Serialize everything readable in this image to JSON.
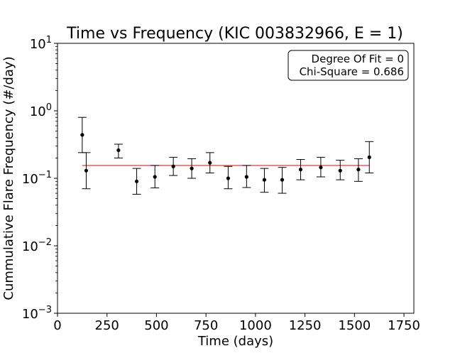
{
  "chart_data": {
    "type": "scatter",
    "title": "Time vs Frequency (KIC 003832966, E = 1)",
    "xlabel": "Time (days)",
    "ylabel": "Cummulative Flare Frequency (#/day)",
    "xlim": [
      0,
      1800
    ],
    "ylim": [
      0.001,
      10
    ],
    "yscale": "log",
    "x_ticks": [
      0,
      250,
      500,
      750,
      1000,
      1250,
      1500,
      1750
    ],
    "x_tick_labels": [
      "0",
      "250",
      "500",
      "750",
      "1000",
      "1250",
      "1500",
      "1750"
    ],
    "y_ticks": [
      0.001,
      0.01,
      0.1,
      1,
      10
    ],
    "y_tick_labels": [
      {
        "base": "10",
        "exp": "−3"
      },
      {
        "base": "10",
        "exp": "−2"
      },
      {
        "base": "10",
        "exp": "−1"
      },
      {
        "base": "10",
        "exp": "0"
      },
      {
        "base": "10",
        "exp": "1"
      }
    ],
    "grid": false,
    "points": [
      {
        "x": 125,
        "y": 0.44,
        "ylow": 0.24,
        "yhigh": 0.8
      },
      {
        "x": 145,
        "y": 0.13,
        "ylow": 0.07,
        "yhigh": 0.24
      },
      {
        "x": 308,
        "y": 0.26,
        "ylow": 0.2,
        "yhigh": 0.32
      },
      {
        "x": 400,
        "y": 0.09,
        "ylow": 0.058,
        "yhigh": 0.14
      },
      {
        "x": 492,
        "y": 0.105,
        "ylow": 0.072,
        "yhigh": 0.155
      },
      {
        "x": 585,
        "y": 0.15,
        "ylow": 0.11,
        "yhigh": 0.205
      },
      {
        "x": 678,
        "y": 0.14,
        "ylow": 0.1,
        "yhigh": 0.195
      },
      {
        "x": 770,
        "y": 0.17,
        "ylow": 0.12,
        "yhigh": 0.24
      },
      {
        "x": 862,
        "y": 0.1,
        "ylow": 0.07,
        "yhigh": 0.15
      },
      {
        "x": 955,
        "y": 0.105,
        "ylow": 0.073,
        "yhigh": 0.155
      },
      {
        "x": 1045,
        "y": 0.095,
        "ylow": 0.062,
        "yhigh": 0.14
      },
      {
        "x": 1135,
        "y": 0.095,
        "ylow": 0.06,
        "yhigh": 0.145
      },
      {
        "x": 1228,
        "y": 0.135,
        "ylow": 0.095,
        "yhigh": 0.19
      },
      {
        "x": 1330,
        "y": 0.145,
        "ylow": 0.105,
        "yhigh": 0.205
      },
      {
        "x": 1428,
        "y": 0.13,
        "ylow": 0.095,
        "yhigh": 0.185
      },
      {
        "x": 1520,
        "y": 0.135,
        "ylow": 0.09,
        "yhigh": 0.195
      },
      {
        "x": 1575,
        "y": 0.205,
        "ylow": 0.12,
        "yhigh": 0.35
      }
    ],
    "fit_line": {
      "x_start": 125,
      "x_end": 1575,
      "y": 0.155,
      "color": "#d62728"
    },
    "point_color": "#000000",
    "legend_box": {
      "position": "top-right",
      "lines": [
        "Degree Of Fit = 0",
        "Chi-Square = 0.686"
      ]
    }
  }
}
